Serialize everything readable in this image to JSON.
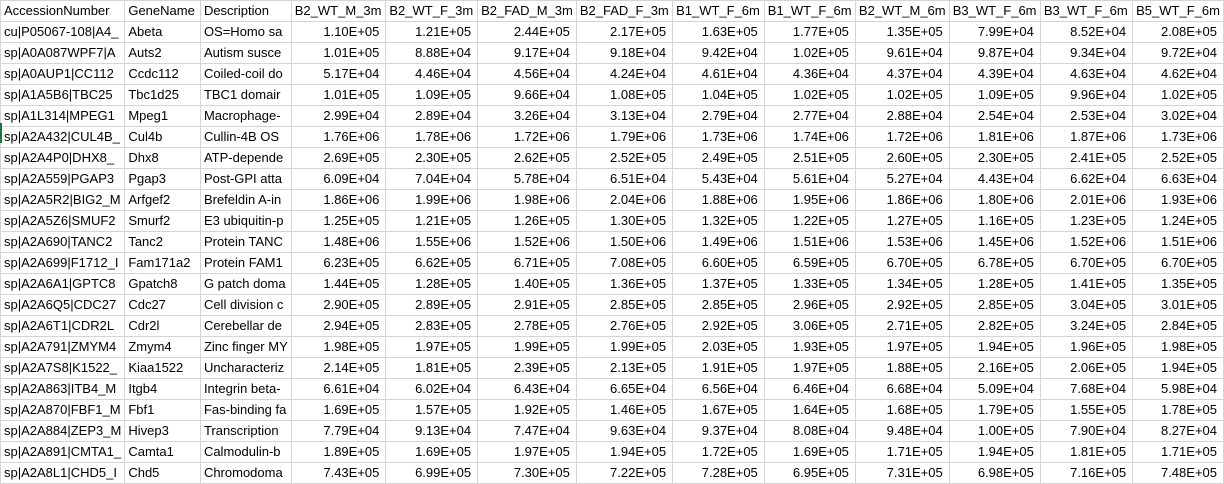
{
  "sheet": {
    "headers": [
      "AccessionNumber",
      "GeneName",
      "Description",
      "B2_WT_M_3m",
      "B2_WT_F_3m",
      "B2_FAD_M_3m",
      "B2_FAD_F_3m",
      "B1_WT_F_6m",
      "B1_WT_F_6m",
      "B2_WT_M_6m",
      "B3_WT_F_6m",
      "B3_WT_F_6m",
      "B5_WT_F_6m"
    ],
    "rows": [
      [
        "cu|P05067-108|A4_",
        "Abeta",
        "OS=Homo sa",
        "1.10E+05",
        "1.21E+05",
        "2.44E+05",
        "2.17E+05",
        "1.63E+05",
        "1.77E+05",
        "1.35E+05",
        "7.99E+04",
        "8.52E+04",
        "2.08E+05"
      ],
      [
        "sp|A0A087WPF7|A",
        "Auts2",
        "Autism susce",
        "1.01E+05",
        "8.88E+04",
        "9.17E+04",
        "9.18E+04",
        "9.42E+04",
        "1.02E+05",
        "9.61E+04",
        "9.87E+04",
        "9.34E+04",
        "9.72E+04"
      ],
      [
        "sp|A0AUP1|CC112",
        "Ccdc112",
        "Coiled-coil do",
        "5.17E+04",
        "4.46E+04",
        "4.56E+04",
        "4.24E+04",
        "4.61E+04",
        "4.36E+04",
        "4.37E+04",
        "4.39E+04",
        "4.63E+04",
        "4.62E+04"
      ],
      [
        "sp|A1A5B6|TBC25",
        "Tbc1d25",
        "TBC1 domair",
        "1.01E+05",
        "1.09E+05",
        "9.66E+04",
        "1.08E+05",
        "1.04E+05",
        "1.02E+05",
        "1.02E+05",
        "1.09E+05",
        "9.96E+04",
        "1.02E+05"
      ],
      [
        "sp|A1L314|MPEG1",
        "Mpeg1",
        "Macrophage-",
        "2.99E+04",
        "2.89E+04",
        "3.26E+04",
        "3.13E+04",
        "2.79E+04",
        "2.77E+04",
        "2.88E+04",
        "2.54E+04",
        "2.53E+04",
        "3.02E+04"
      ],
      [
        "sp|A2A432|CUL4B_",
        "Cul4b",
        "Cullin-4B OS",
        "1.76E+06",
        "1.78E+06",
        "1.72E+06",
        "1.79E+06",
        "1.73E+06",
        "1.74E+06",
        "1.72E+06",
        "1.81E+06",
        "1.87E+06",
        "1.73E+06"
      ],
      [
        "sp|A2A4P0|DHX8_",
        "Dhx8",
        "ATP-depende",
        "2.69E+05",
        "2.30E+05",
        "2.62E+05",
        "2.52E+05",
        "2.49E+05",
        "2.51E+05",
        "2.60E+05",
        "2.30E+05",
        "2.41E+05",
        "2.52E+05"
      ],
      [
        "sp|A2A559|PGAP3",
        "Pgap3",
        "Post-GPI atta",
        "6.09E+04",
        "7.04E+04",
        "5.78E+04",
        "6.51E+04",
        "5.43E+04",
        "5.61E+04",
        "5.27E+04",
        "4.43E+04",
        "6.62E+04",
        "6.63E+04"
      ],
      [
        "sp|A2A5R2|BIG2_M",
        "Arfgef2",
        "Brefeldin A-in",
        "1.86E+06",
        "1.99E+06",
        "1.98E+06",
        "2.04E+06",
        "1.88E+06",
        "1.95E+06",
        "1.86E+06",
        "1.80E+06",
        "2.01E+06",
        "1.93E+06"
      ],
      [
        "sp|A2A5Z6|SMUF2",
        "Smurf2",
        "E3 ubiquitin-p",
        "1.25E+05",
        "1.21E+05",
        "1.26E+05",
        "1.30E+05",
        "1.32E+05",
        "1.22E+05",
        "1.27E+05",
        "1.16E+05",
        "1.23E+05",
        "1.24E+05"
      ],
      [
        "sp|A2A690|TANC2",
        "Tanc2",
        "Protein TANC",
        "1.48E+06",
        "1.55E+06",
        "1.52E+06",
        "1.50E+06",
        "1.49E+06",
        "1.51E+06",
        "1.53E+06",
        "1.45E+06",
        "1.52E+06",
        "1.51E+06"
      ],
      [
        "sp|A2A699|F1712_I",
        "Fam171a2",
        "Protein FAM1",
        "6.23E+05",
        "6.62E+05",
        "6.71E+05",
        "7.08E+05",
        "6.60E+05",
        "6.59E+05",
        "6.70E+05",
        "6.78E+05",
        "6.70E+05",
        "6.70E+05"
      ],
      [
        "sp|A2A6A1|GPTC8",
        "Gpatch8",
        "G patch doma",
        "1.44E+05",
        "1.28E+05",
        "1.40E+05",
        "1.36E+05",
        "1.37E+05",
        "1.33E+05",
        "1.34E+05",
        "1.28E+05",
        "1.41E+05",
        "1.35E+05"
      ],
      [
        "sp|A2A6Q5|CDC27",
        "Cdc27",
        "Cell division c",
        "2.90E+05",
        "2.89E+05",
        "2.91E+05",
        "2.85E+05",
        "2.85E+05",
        "2.96E+05",
        "2.92E+05",
        "2.85E+05",
        "3.04E+05",
        "3.01E+05"
      ],
      [
        "sp|A2A6T1|CDR2L",
        "Cdr2l",
        "Cerebellar de",
        "2.94E+05",
        "2.83E+05",
        "2.78E+05",
        "2.76E+05",
        "2.92E+05",
        "3.06E+05",
        "2.71E+05",
        "2.82E+05",
        "3.24E+05",
        "2.84E+05"
      ],
      [
        "sp|A2A791|ZMYM4",
        "Zmym4",
        "Zinc finger MY",
        "1.98E+05",
        "1.97E+05",
        "1.99E+05",
        "1.99E+05",
        "2.03E+05",
        "1.93E+05",
        "1.97E+05",
        "1.94E+05",
        "1.96E+05",
        "1.98E+05"
      ],
      [
        "sp|A2A7S8|K1522_",
        "Kiaa1522",
        "Uncharacteriz",
        "2.14E+05",
        "1.81E+05",
        "2.39E+05",
        "2.13E+05",
        "1.91E+05",
        "1.97E+05",
        "1.88E+05",
        "2.16E+05",
        "2.06E+05",
        "1.94E+05"
      ],
      [
        "sp|A2A863|ITB4_M",
        "Itgb4",
        "Integrin beta-",
        "6.61E+04",
        "6.02E+04",
        "6.43E+04",
        "6.65E+04",
        "6.56E+04",
        "6.46E+04",
        "6.68E+04",
        "5.09E+04",
        "7.68E+04",
        "5.98E+04"
      ],
      [
        "sp|A2A870|FBF1_M",
        "Fbf1",
        "Fas-binding fa",
        "1.69E+05",
        "1.57E+05",
        "1.92E+05",
        "1.46E+05",
        "1.67E+05",
        "1.64E+05",
        "1.68E+05",
        "1.79E+05",
        "1.55E+05",
        "1.78E+05"
      ],
      [
        "sp|A2A884|ZEP3_M",
        "Hivep3",
        "Transcription",
        "7.79E+04",
        "9.13E+04",
        "7.47E+04",
        "9.63E+04",
        "9.37E+04",
        "8.08E+04",
        "9.48E+04",
        "1.00E+05",
        "7.90E+04",
        "8.27E+04"
      ],
      [
        "sp|A2A891|CMTA1_",
        "Camta1",
        "Calmodulin-b",
        "1.89E+05",
        "1.69E+05",
        "1.97E+05",
        "1.94E+05",
        "1.72E+05",
        "1.69E+05",
        "1.71E+05",
        "1.94E+05",
        "1.81E+05",
        "1.71E+05"
      ],
      [
        "sp|A2A8L1|CHD5_I",
        "Chd5",
        "Chromodoma",
        "7.43E+05",
        "6.99E+05",
        "7.30E+05",
        "7.22E+05",
        "7.28E+05",
        "6.95E+05",
        "7.31E+05",
        "6.98E+05",
        "7.16E+05",
        "7.48E+05"
      ]
    ]
  }
}
